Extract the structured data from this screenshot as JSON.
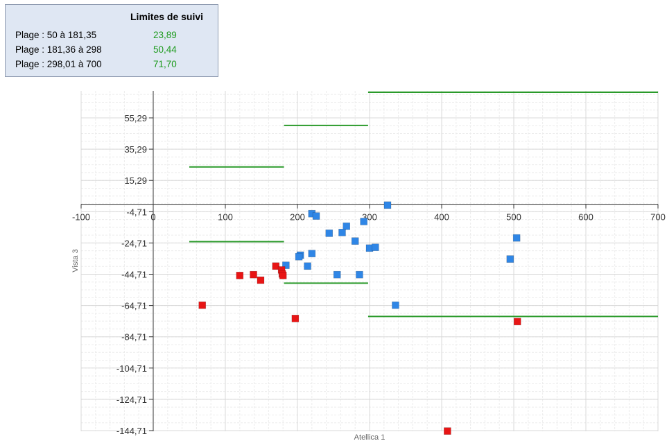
{
  "legend": {
    "title": "Limites de suivi",
    "rows": [
      {
        "label": "Plage : 50 à 181,35",
        "value": "23,89"
      },
      {
        "label": "Plage : 181,36 à 298",
        "value": "50,44"
      },
      {
        "label": "Plage : 298,01 à 700",
        "value": "71,70"
      }
    ]
  },
  "chart_data": {
    "type": "scatter",
    "xlabel": "Atellica 1",
    "ylabel": "Vista 3",
    "xlim": [
      -100,
      700
    ],
    "ylim": [
      -144.71,
      72
    ],
    "x_ticks": [
      -100,
      0,
      100,
      200,
      300,
      400,
      500,
      600,
      700
    ],
    "x_tick_labels": [
      "-100",
      "0",
      "100",
      "200",
      "300",
      "400",
      "500",
      "600",
      "700"
    ],
    "y_ticks": [
      55.29,
      35.29,
      15.29,
      -4.71,
      -24.71,
      -44.71,
      -64.71,
      -84.71,
      -104.71,
      -124.71,
      -144.71
    ],
    "y_tick_labels": [
      "55,29",
      "35,29",
      "15,29",
      "-4,71",
      "-24,71",
      "-44,71",
      "-64,71",
      "-84,71",
      "-104,71",
      "-124,71",
      "-144,71"
    ],
    "grid": true,
    "colors": {
      "in_limits": "#2f86e6",
      "out_of_limits": "#e81515",
      "limit_line": "#2a9a2a"
    },
    "limit_lines": [
      {
        "x_range": [
          50,
          181.35
        ],
        "y": 23.89
      },
      {
        "x_range": [
          50,
          181.35
        ],
        "y": -23.89
      },
      {
        "x_range": [
          181.36,
          298
        ],
        "y": 50.44
      },
      {
        "x_range": [
          181.36,
          298
        ],
        "y": -50.44
      },
      {
        "x_range": [
          298.01,
          700
        ],
        "y": 71.7
      },
      {
        "x_range": [
          298.01,
          700
        ],
        "y": -71.7
      }
    ],
    "series": [
      {
        "points": [
          [
            220,
            -6
          ],
          [
            226,
            -7.5
          ],
          [
            325,
            -0.5
          ],
          [
            292,
            -11
          ],
          [
            268,
            -14
          ],
          [
            262,
            -18
          ],
          [
            244,
            -18.5
          ],
          [
            280,
            -23.5
          ],
          [
            300,
            -28
          ],
          [
            308,
            -27.5
          ],
          [
            220,
            -31.5
          ],
          [
            204,
            -32.5
          ],
          [
            202,
            -33.5
          ],
          [
            184,
            -39
          ],
          [
            214,
            -39.5
          ],
          [
            255,
            -45
          ],
          [
            286,
            -45
          ],
          [
            495,
            -35
          ],
          [
            504,
            -21.5
          ],
          [
            336,
            -64.5
          ]
        ]
      },
      {
        "points": [
          [
            68,
            -64.5
          ],
          [
            120,
            -45.5
          ],
          [
            139,
            -45
          ],
          [
            149,
            -48.5
          ],
          [
            170,
            -39.5
          ],
          [
            178,
            -42
          ],
          [
            179,
            -44.5
          ],
          [
            180,
            -45.5
          ],
          [
            197,
            -73
          ],
          [
            505,
            -75
          ],
          [
            408,
            -145
          ]
        ]
      }
    ]
  }
}
